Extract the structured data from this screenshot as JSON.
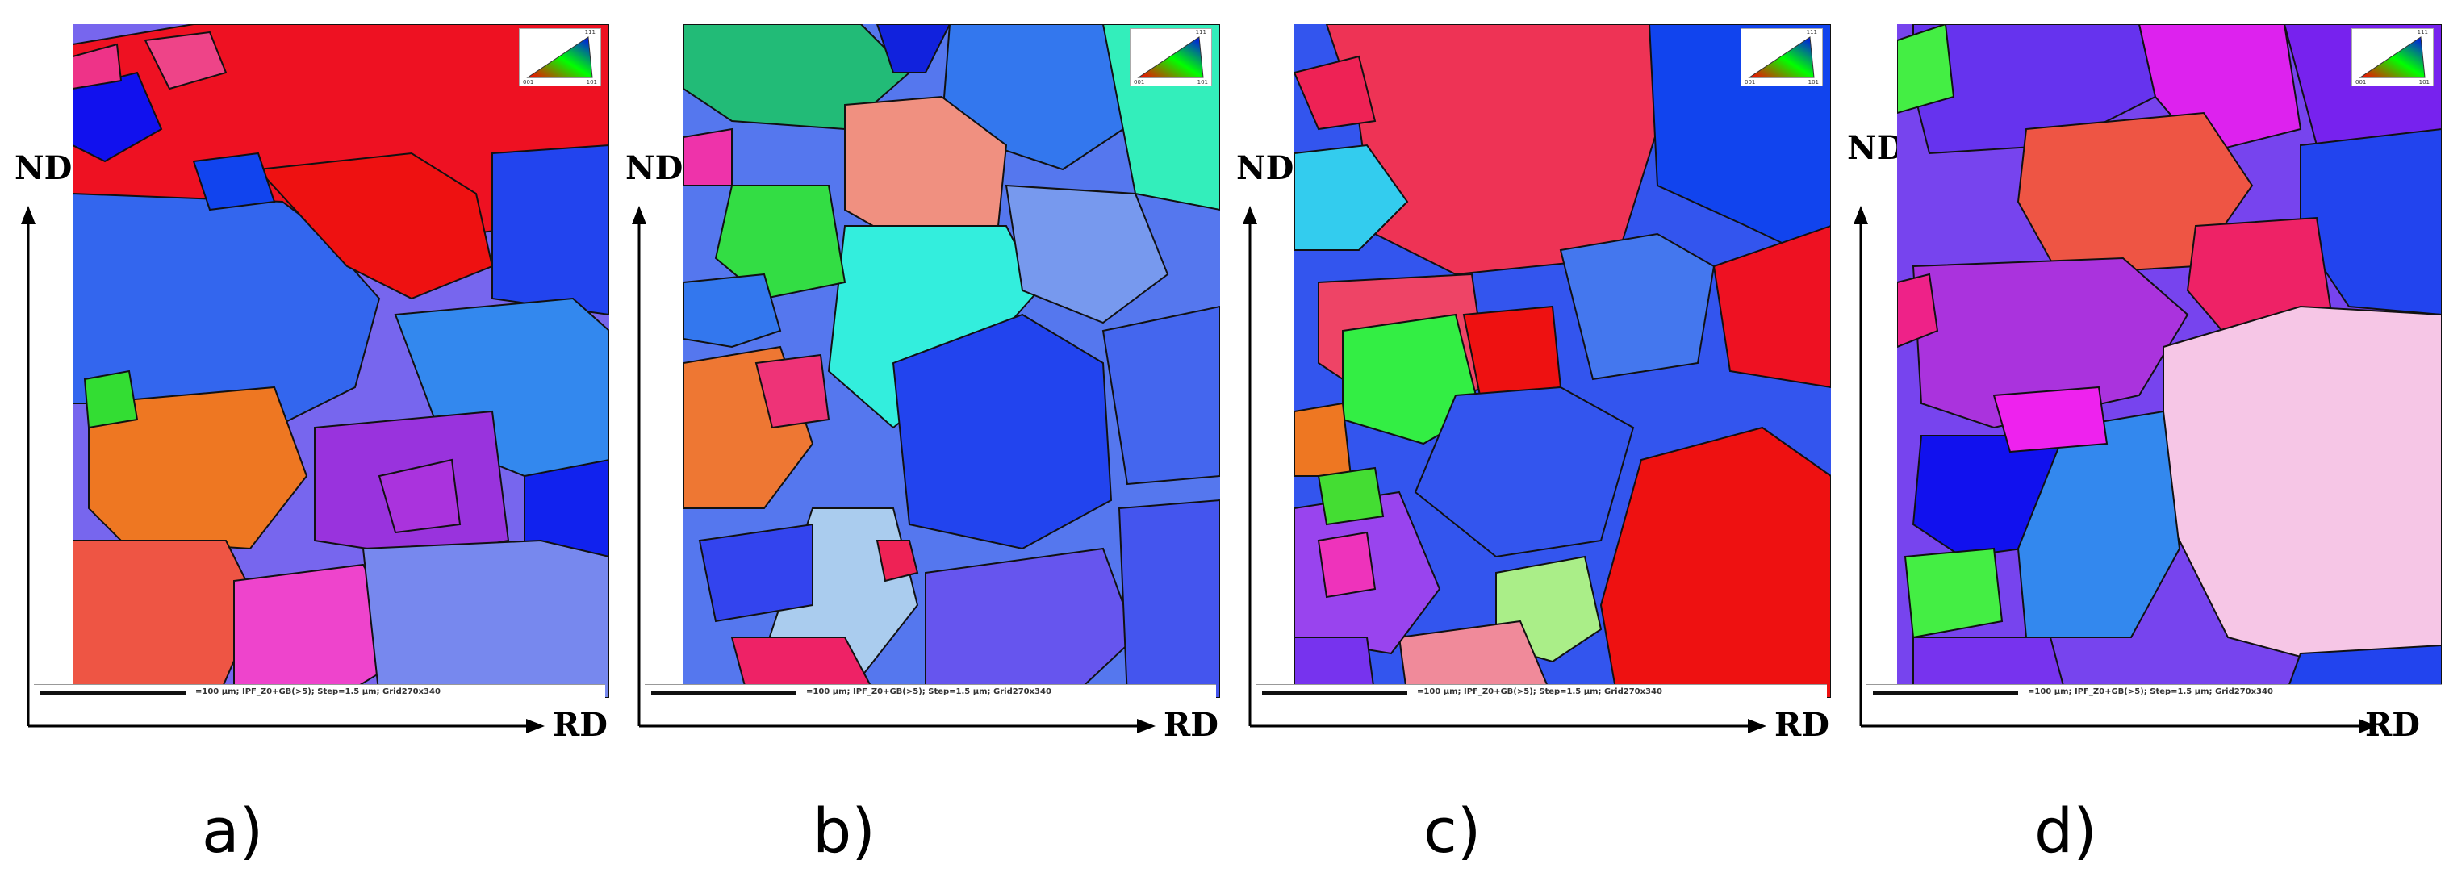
{
  "panels": [
    {
      "label": "a)",
      "nd": "ND",
      "rd": "RD",
      "scalebar": "=100 µm; IPF_Z0+GB(>5); Step=1.5 µm; Grid270x340"
    },
    {
      "label": "b)",
      "nd": "ND",
      "rd": "RD",
      "scalebar": "=100 µm; IPF_Z0+GB(>5); Step=1.5 µm; Grid270x340"
    },
    {
      "label": "c)",
      "nd": "ND",
      "rd": "RD",
      "scalebar": "=100 µm; IPF_Z0+GB(>5); Step=1.5 µm; Grid270x340"
    },
    {
      "label": "d)",
      "nd": "ND",
      "rd": "RD",
      "scalebar": "=100 µm; IPF_Z0+GB(>5); Step=1.5 µm; Grid270x340"
    }
  ],
  "legend": {
    "top": "111",
    "left": "001",
    "right": "101"
  },
  "colors": {
    "red": "#ee1111",
    "blue": "#2233ee",
    "royal": "#3355dd",
    "purple": "#9933dd",
    "violet": "#7744ee",
    "pink": "#ee3377",
    "orange": "#ee7722",
    "green": "#33dd44",
    "cyan": "#33ddee",
    "lightpink": "#f6c6e6",
    "salmon": "#f08080",
    "teal": "#33ccbb"
  }
}
